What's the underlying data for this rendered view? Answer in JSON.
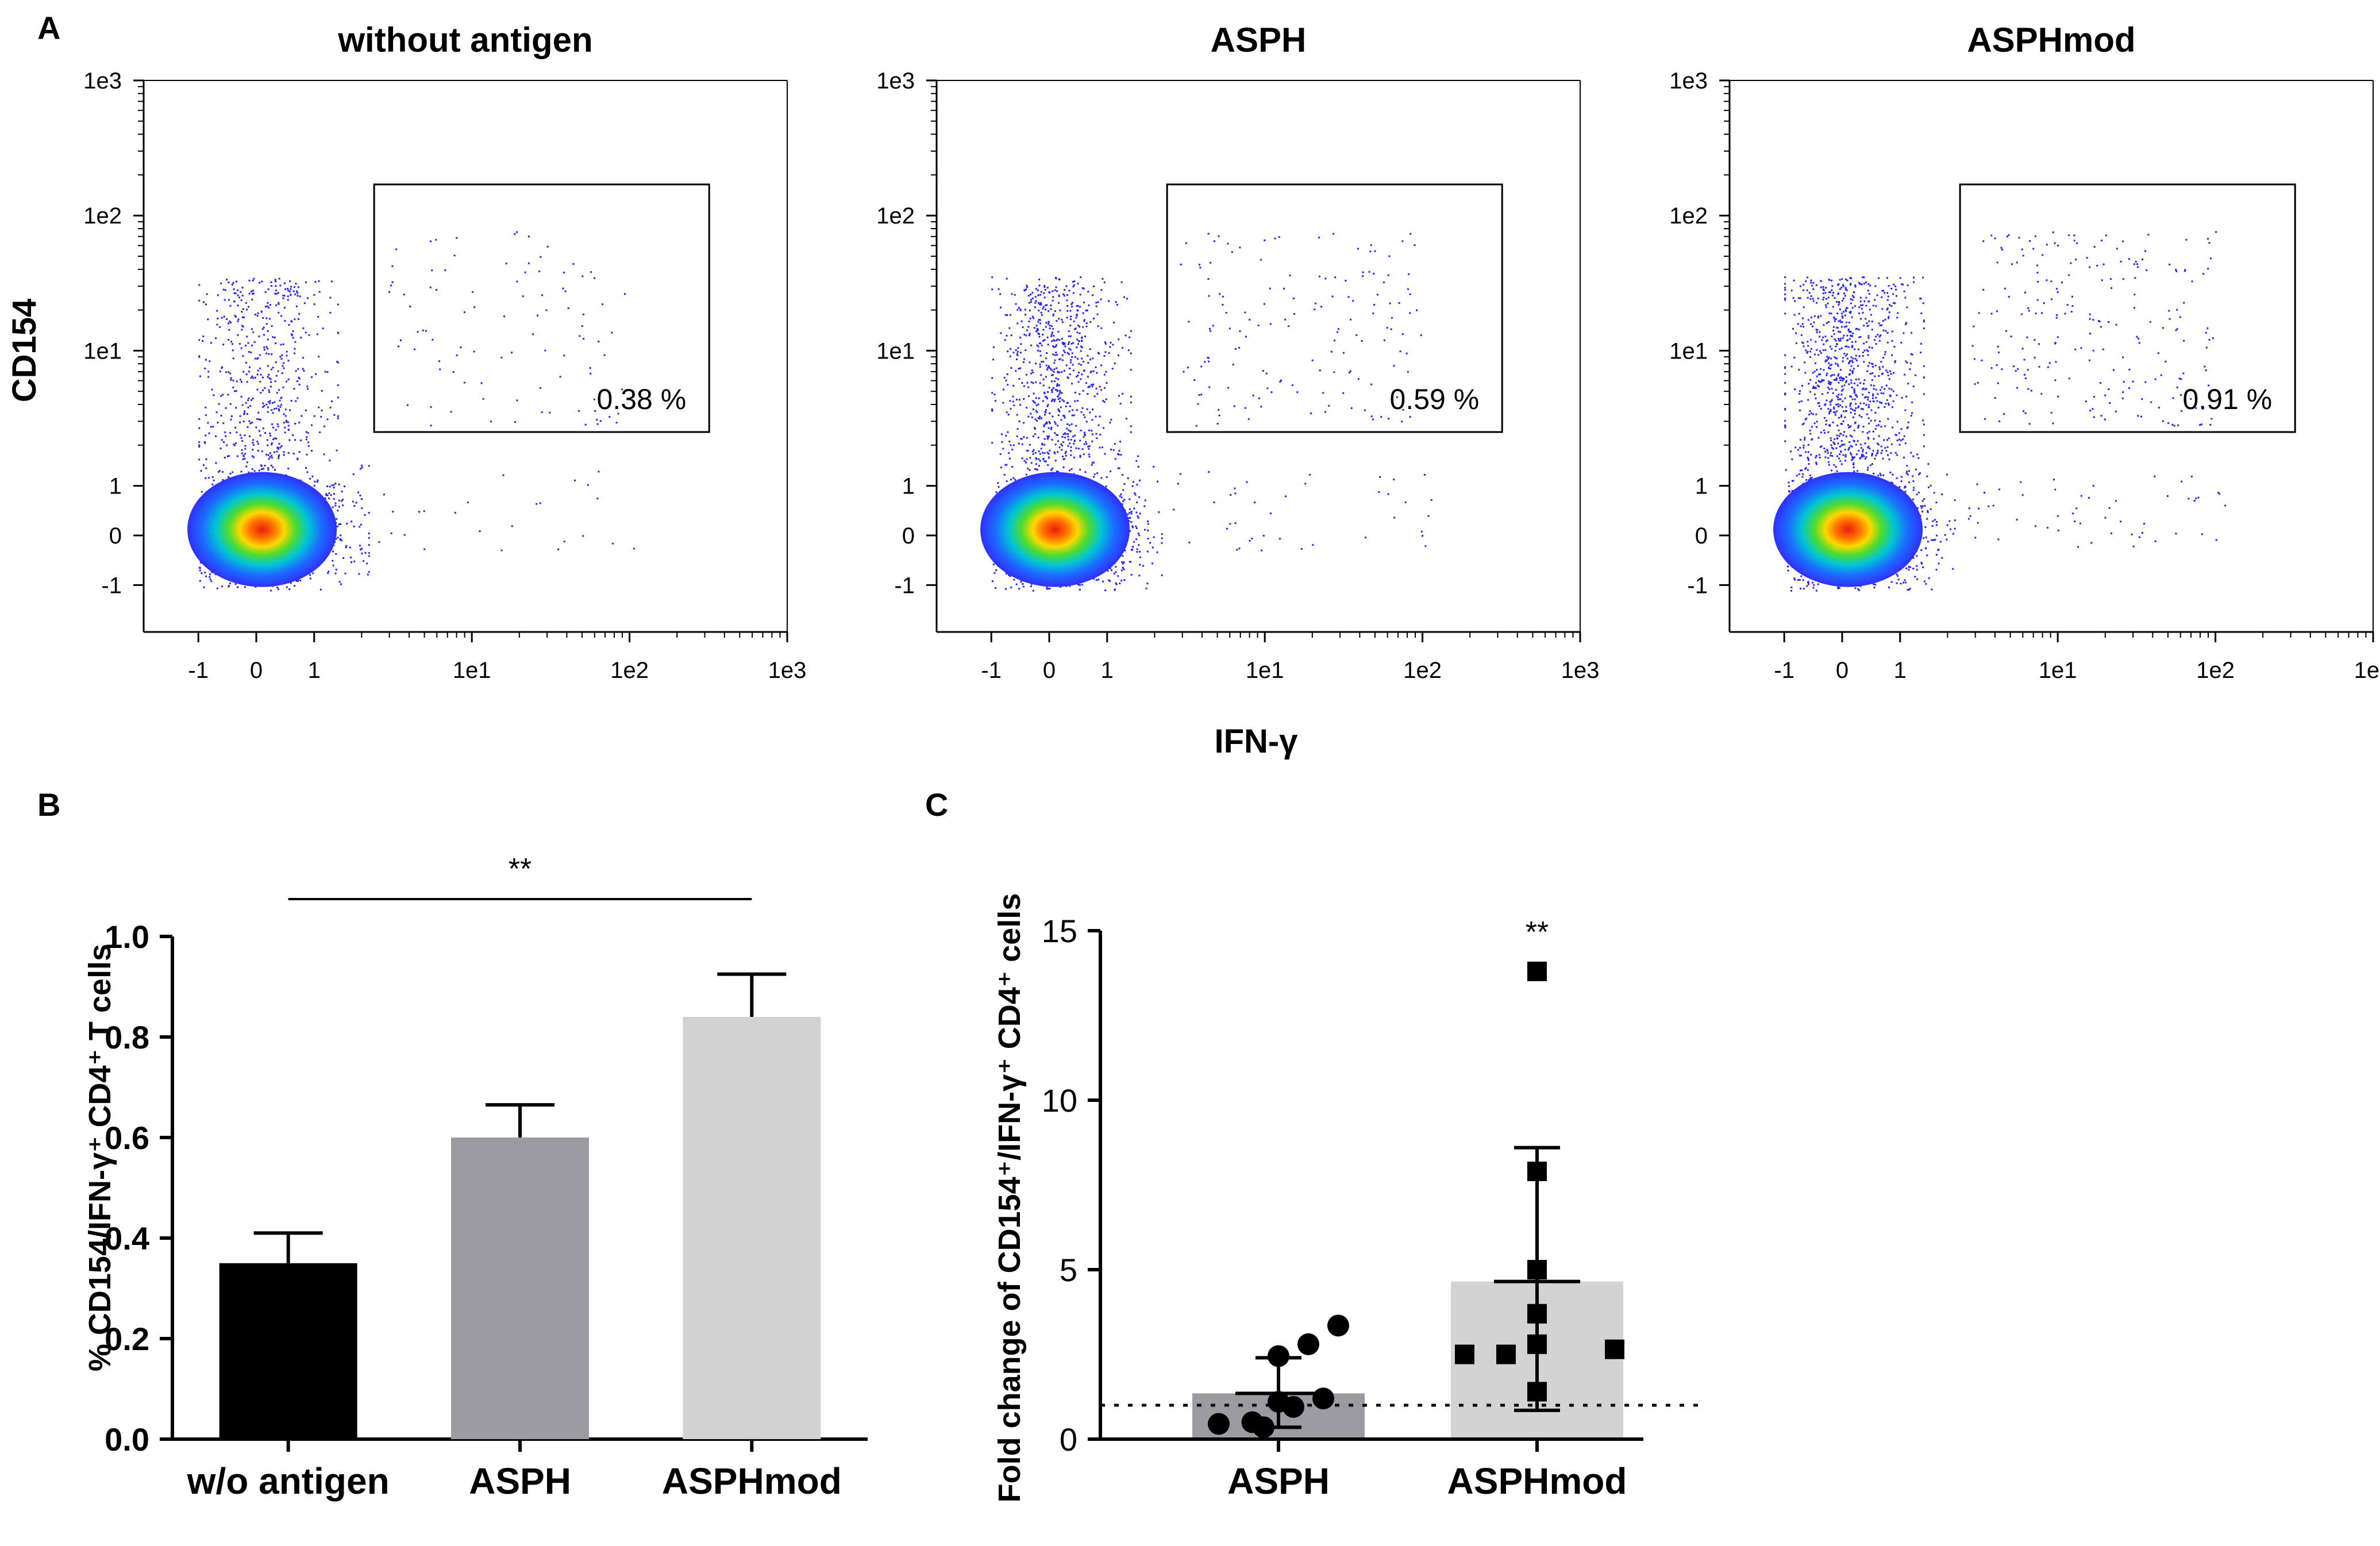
{
  "chart_data": [
    {
      "panel": "A",
      "type": "scatter",
      "subtype": "flow-cytometry-density",
      "xlabel": "IFN-γ",
      "ylabel": "CD154",
      "ticks": [
        "-1",
        "0",
        "1",
        "1e1",
        "1e2",
        "1e3"
      ],
      "tick_values": [
        -1,
        0,
        1,
        10,
        100,
        1000
      ],
      "gate": {
        "x_range": [
          2.4,
          320
        ],
        "y_range": [
          2.5,
          170
        ]
      },
      "plots": [
        {
          "title": "without antigen",
          "gate_percent": "0.38 %",
          "gate_dots": 95
        },
        {
          "title": "ASPH",
          "gate_percent": "0.59 %",
          "gate_dots": 150
        },
        {
          "title": "ASPHmod",
          "gate_percent": "0.91 %",
          "gate_dots": 230
        }
      ]
    },
    {
      "panel": "B",
      "type": "bar",
      "categories": [
        "w/o antigen",
        "ASPH",
        "ASPHmod"
      ],
      "values": [
        0.35,
        0.6,
        0.84
      ],
      "errors": [
        0.06,
        0.065,
        0.085
      ],
      "colors": [
        "#000000",
        "#9c9ba1",
        "#d3d3d3"
      ],
      "ylabel": "% CD154/IFN-γ⁺ CD4⁺ T cells",
      "ylim": [
        0,
        1.0
      ],
      "yticks": [
        "0.0",
        "0.2",
        "0.4",
        "0.6",
        "0.8",
        "1.0"
      ],
      "significance": {
        "label": "**",
        "from": "w/o antigen",
        "to": "ASPHmod"
      }
    },
    {
      "panel": "C",
      "type": "bar",
      "categories": [
        "ASPH",
        "ASPHmod"
      ],
      "values": [
        1.35,
        4.65
      ],
      "error_low": [
        0.35,
        0.85
      ],
      "error_high": [
        2.4,
        8.6
      ],
      "colors": [
        "#9c9ba1",
        "#d3d3d3"
      ],
      "points": [
        [
          0.45,
          0.5,
          1.1,
          2.8,
          3.35,
          0.35,
          0.95,
          1.2,
          2.45
        ],
        [
          13.8,
          7.9,
          5.0,
          3.7,
          2.8,
          1.4,
          2.5,
          2.65,
          2.5
        ]
      ],
      "reference_line": 1,
      "ylabel": "Fold change of CD154⁺/IFN-γ⁺ CD4⁺ cells",
      "ylim": [
        0,
        15
      ],
      "yticks": [
        "0",
        "5",
        "10",
        "15"
      ],
      "significance": {
        "label": "**",
        "over": "ASPHmod"
      }
    }
  ],
  "panel_labels": {
    "a": "A",
    "b": "B",
    "c": "C"
  }
}
